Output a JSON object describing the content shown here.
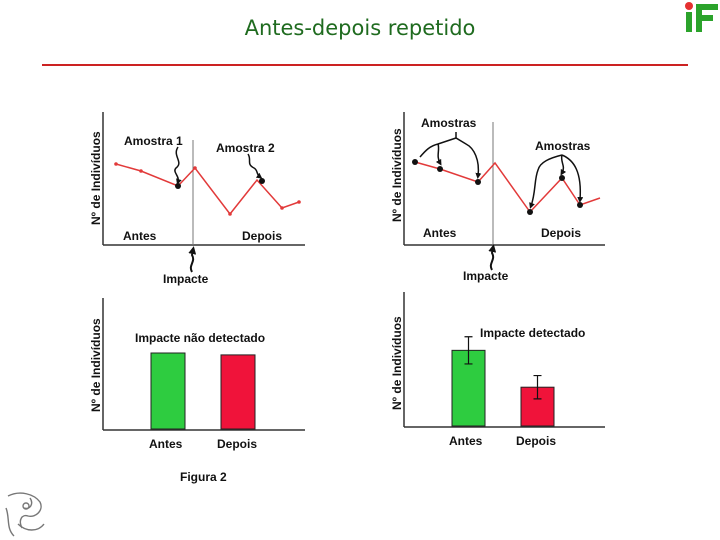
{
  "title": "Antes-depois repetido",
  "logo": {
    "text": "iF",
    "dot_color": "#e53030",
    "color": "#2ba32b"
  },
  "colors": {
    "red_line": "#e23a3a",
    "green_bar": "#2ecc40",
    "red_bar": "#f0133a",
    "title": "#1f6b1f",
    "rule": "#cc2222"
  },
  "top_left": {
    "ylabel": "Nº de Indivíduos",
    "sample1": "Amostra 1",
    "sample2": "Amostra 2",
    "before": "Antes",
    "after": "Depois",
    "impact": "Impacte"
  },
  "top_right": {
    "ylabel": "Nº de Indivíduos",
    "samples_left": "Amostras",
    "samples_right": "Amostras",
    "before": "Antes",
    "after": "Depois",
    "impact": "Impacte"
  },
  "bottom_left": {
    "ylabel": "Nº de Indivíduos",
    "heading": "Impacte não detectado",
    "before": "Antes",
    "after": "Depois",
    "chart_data": {
      "type": "bar",
      "categories": [
        "Antes",
        "Depois"
      ],
      "values": [
        80,
        78
      ]
    }
  },
  "bottom_right": {
    "ylabel": "Nº de Indivíduos",
    "heading": "Impacte detectado",
    "before": "Antes",
    "after": "Depois",
    "chart_data": {
      "type": "bar",
      "categories": [
        "Antes",
        "Depois"
      ],
      "values": [
        78,
        40
      ],
      "error": [
        14,
        12
      ]
    }
  },
  "figure_caption": "Figura 2"
}
